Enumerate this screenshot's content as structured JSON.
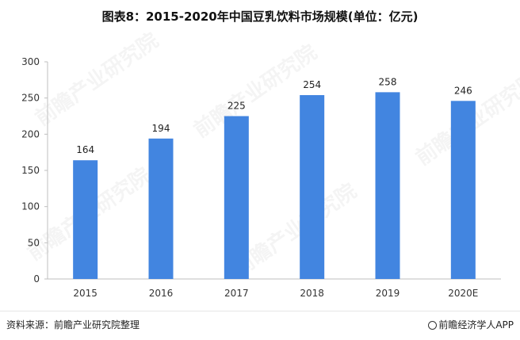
{
  "title": "图表8：2015-2020年中国豆乳饮料市场规模(单位：亿元)",
  "footer": {
    "source": "资料来源：前瞻产业研究院整理",
    "brand": "前瞻经济学人APP"
  },
  "watermark": "前瞻产业研究院",
  "colors": {
    "bar": "#4285e0",
    "axis": "#bfbfbf",
    "text": "#222222"
  },
  "chart_data": {
    "type": "bar",
    "categories": [
      "2015",
      "2016",
      "2017",
      "2018",
      "2019",
      "2020E"
    ],
    "values": [
      164,
      194,
      225,
      254,
      258,
      246
    ],
    "data_labels": [
      "164",
      "194",
      "225",
      "254",
      "258",
      "246"
    ],
    "title": "图表8：2015-2020年中国豆乳饮料市场规模(单位：亿元)",
    "xlabel": "",
    "ylabel": "",
    "ylim": [
      0,
      300
    ],
    "yticks": [
      0,
      50,
      100,
      150,
      200,
      250,
      300
    ],
    "grid": false,
    "legend": "none"
  }
}
